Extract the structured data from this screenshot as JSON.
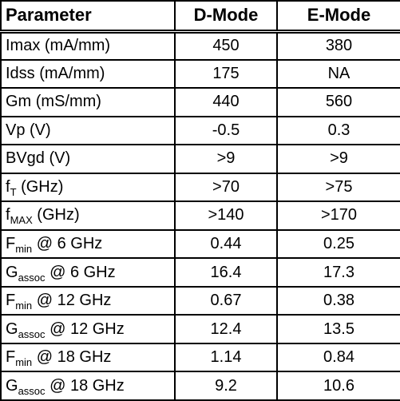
{
  "table": {
    "headers": [
      "Parameter",
      "D-Mode",
      "E-Mode"
    ],
    "rows": [
      {
        "base": "Imax (mA/mm)",
        "sub": "",
        "suffix": "",
        "d_mode": "450",
        "e_mode": "380"
      },
      {
        "base": "Idss (mA/mm)",
        "sub": "",
        "suffix": "",
        "d_mode": "175",
        "e_mode": "NA"
      },
      {
        "base": "Gm (mS/mm)",
        "sub": "",
        "suffix": "",
        "d_mode": "440",
        "e_mode": "560"
      },
      {
        "base": "Vp (V)",
        "sub": "",
        "suffix": "",
        "d_mode": "-0.5",
        "e_mode": "0.3"
      },
      {
        "base": "BVgd (V)",
        "sub": "",
        "suffix": "",
        "d_mode": ">9",
        "e_mode": ">9"
      },
      {
        "base": "f",
        "sub": "T",
        "suffix": " (GHz)",
        "d_mode": ">70",
        "e_mode": ">75"
      },
      {
        "base": "f",
        "sub": "MAX",
        "suffix": " (GHz)",
        "d_mode": ">140",
        "e_mode": ">170"
      },
      {
        "base": "F",
        "sub": "min",
        "suffix": " @ 6 GHz",
        "d_mode": "0.44",
        "e_mode": "0.25"
      },
      {
        "base": "G",
        "sub": "assoc",
        "suffix": " @ 6 GHz",
        "d_mode": "16.4",
        "e_mode": "17.3"
      },
      {
        "base": "F",
        "sub": "min",
        "suffix": " @ 12 GHz",
        "d_mode": "0.67",
        "e_mode": "0.38"
      },
      {
        "base": "G",
        "sub": "assoc",
        "suffix": " @ 12 GHz",
        "d_mode": "12.4",
        "e_mode": "13.5"
      },
      {
        "base": "F",
        "sub": "min",
        "suffix": " @ 18 GHz",
        "d_mode": "1.14",
        "e_mode": "0.84"
      },
      {
        "base": "G",
        "sub": "assoc",
        "suffix": " @ 18 GHz",
        "d_mode": "9.2",
        "e_mode": "10.6"
      }
    ]
  }
}
